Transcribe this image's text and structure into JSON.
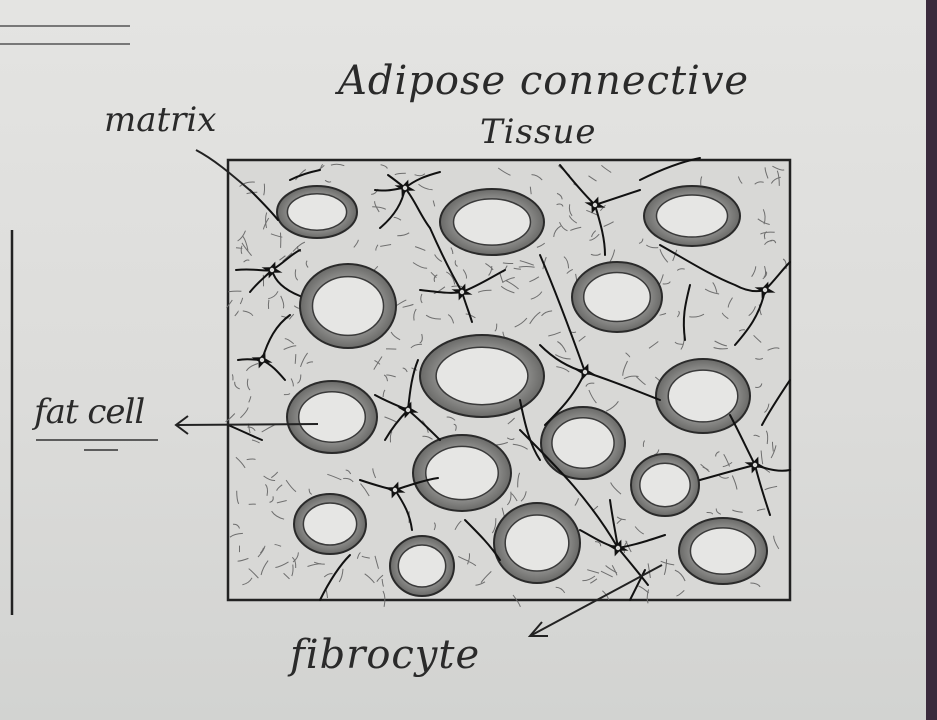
{
  "title": {
    "line1": "Adipose connective",
    "line2": "Tissue"
  },
  "labels": {
    "matrix": "matrix",
    "fat_cell": "fat cell",
    "fibrocyte": "fibrocyte"
  },
  "colors": {
    "paper": "#e0e0de",
    "ink": "#2a2a2a",
    "shading": "#8a8a8a"
  }
}
